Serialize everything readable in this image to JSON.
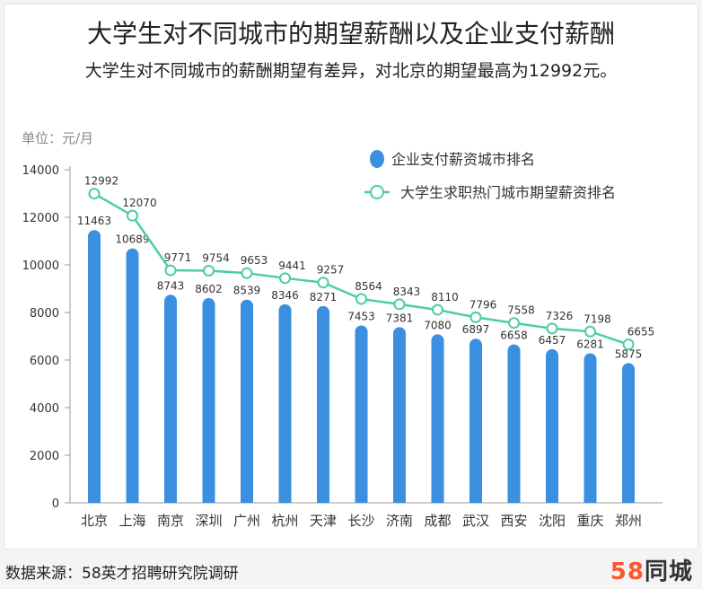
{
  "header": {
    "title": "大学生对不同城市的期望薪酬以及企业支付薪酬",
    "subtitle": "大学生对不同城市的薪酬期望有差异，对北京的期望最高为12992元。"
  },
  "footer": {
    "source": "数据来源：58英才招聘研究院调研",
    "logo_num": "58",
    "logo_text": "同城"
  },
  "chart_data": {
    "type": "bar",
    "unit_label": "单位：元/月",
    "categories": [
      "北京",
      "上海",
      "南京",
      "深圳",
      "广州",
      "杭州",
      "天津",
      "长沙",
      "济南",
      "成都",
      "武汉",
      "西安",
      "沈阳",
      "重庆",
      "郑州"
    ],
    "series": [
      {
        "name": "企业支付薪资城市排名",
        "type": "bar",
        "color": "#3b8fe0",
        "values": [
          11463,
          10689,
          8743,
          8602,
          8539,
          8346,
          8271,
          7453,
          7381,
          7080,
          6897,
          6658,
          6457,
          6281,
          5875
        ]
      },
      {
        "name": "大学生求职热门城市期望薪资排名",
        "type": "line",
        "color": "#4ccf9a",
        "values": [
          12992,
          12070,
          9771,
          9754,
          9653,
          9441,
          9257,
          8564,
          8343,
          8110,
          7796,
          7558,
          7326,
          7198,
          6655
        ]
      }
    ],
    "ylim": [
      0,
      14000
    ],
    "yticks": [
      0,
      2000,
      4000,
      6000,
      8000,
      10000,
      12000,
      14000
    ],
    "legend_position": "top-right"
  }
}
